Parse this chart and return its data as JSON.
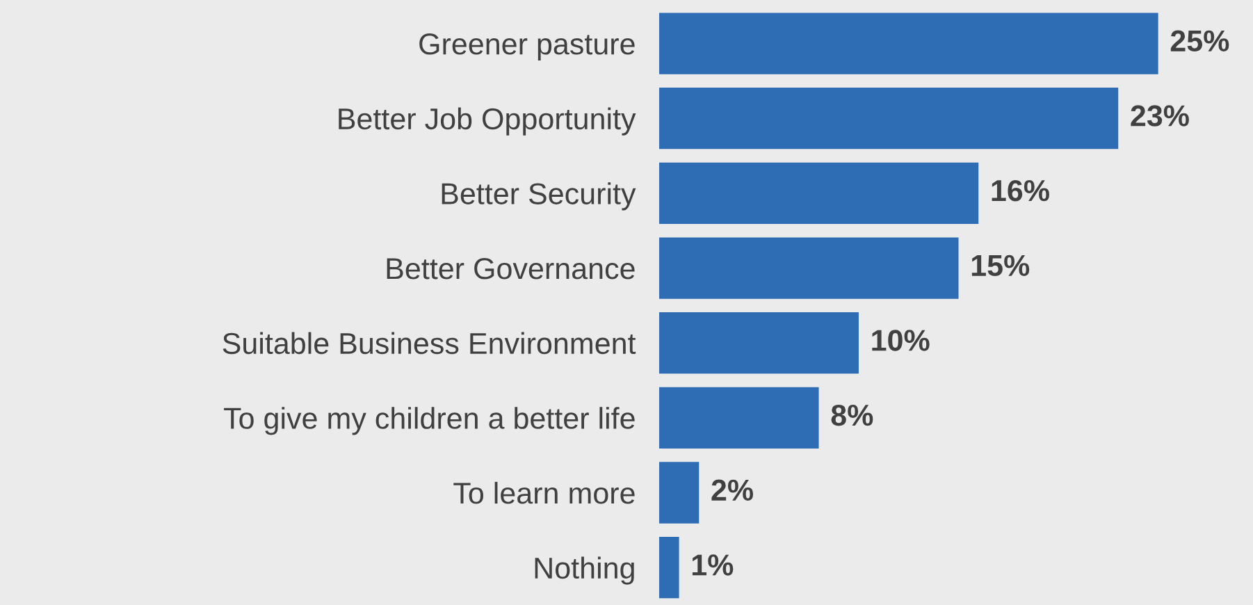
{
  "chart_data": {
    "type": "bar",
    "orientation": "horizontal",
    "categories": [
      "Greener pasture",
      "Better Job Opportunity",
      "Better Security",
      "Better Governance",
      "Suitable Business Environment",
      "To give my children a better life",
      "To learn more",
      "Nothing"
    ],
    "values": [
      25,
      23,
      16,
      15,
      10,
      8,
      2,
      1
    ],
    "value_labels": [
      "25%",
      "23%",
      "16%",
      "15%",
      "10%",
      "8%",
      "2%",
      "1%"
    ],
    "color": "#2e6db4",
    "grid": false,
    "legend": false
  }
}
